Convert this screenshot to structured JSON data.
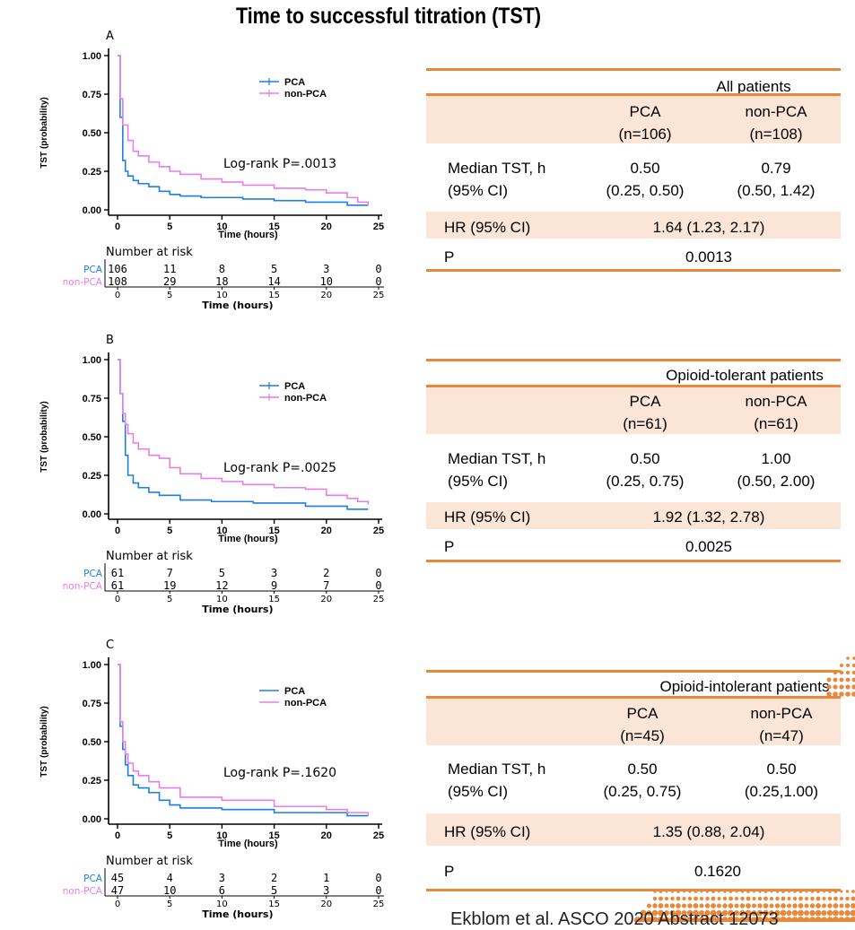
{
  "title": "Time to successful titration (TST)",
  "colors": {
    "pca": "#1f7fe0",
    "non_pca": "#e67fe6",
    "accent": "#e8883a",
    "band": "#fbe5d6"
  },
  "chart_data": [
    {
      "type": "line",
      "panel_label": "A",
      "ylabel": "TST (probability)",
      "xlabel": "Time (hours)",
      "xlim": [
        0,
        25
      ],
      "ylim": [
        0,
        1
      ],
      "x_ticks": [
        "0",
        "5",
        "10",
        "15",
        "20",
        "25"
      ],
      "y_ticks": [
        "0.00",
        "0.25",
        "0.50",
        "0.75",
        "1.00"
      ],
      "legend": [
        "PCA",
        "non-PCA"
      ],
      "annotation": "Log-rank P=.0013",
      "series": [
        {
          "name": "PCA",
          "points": [
            [
              0,
              1
            ],
            [
              0.25,
              0.6
            ],
            [
              0.25,
              0.6
            ],
            [
              0.5,
              0.72
            ],
            [
              0.5,
              0.32
            ],
            [
              0.75,
              0.25
            ],
            [
              1,
              0.22
            ],
            [
              1.5,
              0.19
            ],
            [
              2,
              0.17
            ],
            [
              3,
              0.15
            ],
            [
              4,
              0.12
            ],
            [
              5,
              0.1
            ],
            [
              6,
              0.09
            ],
            [
              8,
              0.08
            ],
            [
              12,
              0.07
            ],
            [
              15,
              0.06
            ],
            [
              18,
              0.05
            ],
            [
              22,
              0.03
            ],
            [
              24,
              0.03
            ]
          ]
        },
        {
          "name": "non-PCA",
          "points": [
            [
              0,
              1
            ],
            [
              0.25,
              0.72
            ],
            [
              0.5,
              0.55
            ],
            [
              1,
              0.45
            ],
            [
              1.5,
              0.38
            ],
            [
              2,
              0.35
            ],
            [
              3,
              0.31
            ],
            [
              4,
              0.28
            ],
            [
              5,
              0.25
            ],
            [
              6,
              0.23
            ],
            [
              8,
              0.2
            ],
            [
              10,
              0.18
            ],
            [
              12,
              0.16
            ],
            [
              15,
              0.14
            ],
            [
              18,
              0.13
            ],
            [
              20,
              0.11
            ],
            [
              22,
              0.08
            ],
            [
              23,
              0.05
            ],
            [
              24,
              0.03
            ]
          ]
        }
      ],
      "risk_table": {
        "title": "Number at risk",
        "xlabel": "Time (hours)",
        "groups": [
          "PCA",
          "non-PCA"
        ],
        "times": [
          "0",
          "5",
          "10",
          "15",
          "20",
          "25"
        ],
        "PCA": [
          "106",
          "11",
          "8",
          "5",
          "3",
          "0"
        ],
        "non-PCA": [
          "108",
          "29",
          "18",
          "14",
          "10",
          "0"
        ]
      }
    },
    {
      "type": "line",
      "panel_label": "B",
      "ylabel": "TST (probability)",
      "xlabel": "Time (hours)",
      "xlim": [
        0,
        25
      ],
      "ylim": [
        0,
        1
      ],
      "x_ticks": [
        "0",
        "5",
        "10",
        "15",
        "20",
        "25"
      ],
      "y_ticks": [
        "0.00",
        "0.25",
        "0.50",
        "0.75",
        "1.00"
      ],
      "legend": [
        "PCA",
        "non-PCA"
      ],
      "annotation": "Log-rank P=.0025",
      "series": [
        {
          "name": "PCA",
          "points": [
            [
              0,
              1
            ],
            [
              0.25,
              0.78
            ],
            [
              0.5,
              0.6
            ],
            [
              0.75,
              0.38
            ],
            [
              1,
              0.25
            ],
            [
              1.5,
              0.2
            ],
            [
              2,
              0.17
            ],
            [
              3,
              0.14
            ],
            [
              4,
              0.12
            ],
            [
              6,
              0.09
            ],
            [
              9,
              0.08
            ],
            [
              13,
              0.07
            ],
            [
              18,
              0.05
            ],
            [
              22,
              0.03
            ],
            [
              24,
              0.03
            ]
          ]
        },
        {
          "name": "non-PCA",
          "points": [
            [
              0,
              1
            ],
            [
              0.25,
              0.78
            ],
            [
              0.5,
              0.65
            ],
            [
              0.75,
              0.58
            ],
            [
              1,
              0.52
            ],
            [
              1.5,
              0.46
            ],
            [
              2,
              0.42
            ],
            [
              3,
              0.38
            ],
            [
              4,
              0.36
            ],
            [
              5,
              0.3
            ],
            [
              6,
              0.26
            ],
            [
              8,
              0.23
            ],
            [
              10,
              0.21
            ],
            [
              12,
              0.19
            ],
            [
              15,
              0.17
            ],
            [
              18,
              0.16
            ],
            [
              20,
              0.12
            ],
            [
              22,
              0.1
            ],
            [
              23,
              0.08
            ],
            [
              24,
              0.06
            ]
          ]
        }
      ],
      "risk_table": {
        "title": "Number at risk",
        "xlabel": "Time (hours)",
        "groups": [
          "PCA",
          "non-PCA"
        ],
        "times": [
          "0",
          "5",
          "10",
          "15",
          "20",
          "25"
        ],
        "PCA": [
          "61",
          "7",
          "5",
          "3",
          "2",
          "0"
        ],
        "non-PCA": [
          "61",
          "19",
          "12",
          "9",
          "7",
          "0"
        ]
      }
    },
    {
      "type": "line",
      "panel_label": "C",
      "ylabel": "TST (probability)",
      "xlabel": "Time (hours)",
      "xlim": [
        0,
        25
      ],
      "ylim": [
        0,
        1
      ],
      "x_ticks": [
        "0",
        "5",
        "10",
        "15",
        "20",
        "25"
      ],
      "y_ticks": [
        "0.00",
        "0.25",
        "0.50",
        "0.75",
        "1.00"
      ],
      "legend": [
        "PCA",
        "non-PCA"
      ],
      "annotation": "Log-rank P=.1620",
      "series": [
        {
          "name": "PCA",
          "points": [
            [
              0,
              1
            ],
            [
              0.25,
              0.6
            ],
            [
              0.5,
              0.45
            ],
            [
              0.75,
              0.35
            ],
            [
              1,
              0.28
            ],
            [
              1.5,
              0.22
            ],
            [
              2,
              0.2
            ],
            [
              3,
              0.17
            ],
            [
              4,
              0.12
            ],
            [
              5,
              0.09
            ],
            [
              6,
              0.07
            ],
            [
              10,
              0.06
            ],
            [
              15,
              0.04
            ],
            [
              22,
              0.02
            ],
            [
              24,
              0.02
            ]
          ]
        },
        {
          "name": "non-PCA",
          "points": [
            [
              0,
              1
            ],
            [
              0.25,
              0.63
            ],
            [
              0.5,
              0.5
            ],
            [
              0.75,
              0.42
            ],
            [
              1,
              0.36
            ],
            [
              1.5,
              0.31
            ],
            [
              2,
              0.28
            ],
            [
              3,
              0.24
            ],
            [
              4,
              0.2
            ],
            [
              6,
              0.14
            ],
            [
              10,
              0.12
            ],
            [
              15,
              0.08
            ],
            [
              20,
              0.06
            ],
            [
              22,
              0.04
            ],
            [
              24,
              0.02
            ]
          ]
        }
      ],
      "risk_table": {
        "title": "Number at risk",
        "xlabel": "Time (hours)",
        "groups": [
          "PCA",
          "non-PCA"
        ],
        "times": [
          "0",
          "5",
          "10",
          "15",
          "20",
          "25"
        ],
        "PCA": [
          "45",
          "4",
          "3",
          "2",
          "1",
          "0"
        ],
        "non-PCA": [
          "47",
          "10",
          "6",
          "5",
          "3",
          "0"
        ]
      }
    }
  ],
  "tables": [
    {
      "group_title": "All patients",
      "col_pca": "PCA",
      "col_pca_n": "(n=106)",
      "col_nonpca": "non-PCA",
      "col_nonpca_n": "(n=108)",
      "median_label": "Median TST, h",
      "ci_label": "(95% CI)",
      "median_pca": "0.50",
      "median_pca_ci": "(0.25, 0.50)",
      "median_nonpca": "0.79",
      "median_nonpca_ci": "(0.50, 1.42)",
      "hr_label": "HR (95% CI)",
      "hr_value": "1.64 (1.23, 2.17)",
      "p_label": "P",
      "p_value": "0.0013"
    },
    {
      "group_title": "Opioid-tolerant patients",
      "col_pca": "PCA",
      "col_pca_n": "(n=61)",
      "col_nonpca": "non-PCA",
      "col_nonpca_n": "(n=61)",
      "median_label": "Median TST, h",
      "ci_label": "(95% CI)",
      "median_pca": "0.50",
      "median_pca_ci": "(0.25, 0.75)",
      "median_nonpca": "1.00",
      "median_nonpca_ci": "(0.50, 2.00)",
      "hr_label": "HR (95% CI)",
      "hr_value": "1.92 (1.32, 2.78)",
      "p_label": "P",
      "p_value": "0.0025"
    },
    {
      "group_title": "Opioid-intolerant patients",
      "col_pca": "PCA",
      "col_pca_n": "(n=45)",
      "col_nonpca": "non-PCA",
      "col_nonpca_n": "(n=47)",
      "median_label": "Median TST, h",
      "ci_label": "(95% CI)",
      "median_pca": "0.50",
      "median_pca_ci": "(0.25, 0.75)",
      "median_nonpca": "0.50",
      "median_nonpca_ci": "(0.25,1.00)",
      "hr_label": "HR (95% CI)",
      "hr_value": "1.35 (0.88, 2.04)",
      "p_label": "P",
      "p_value": "0.1620"
    }
  ],
  "footer": "Ekblom et al. ASCO 2020 Abstract 12073"
}
